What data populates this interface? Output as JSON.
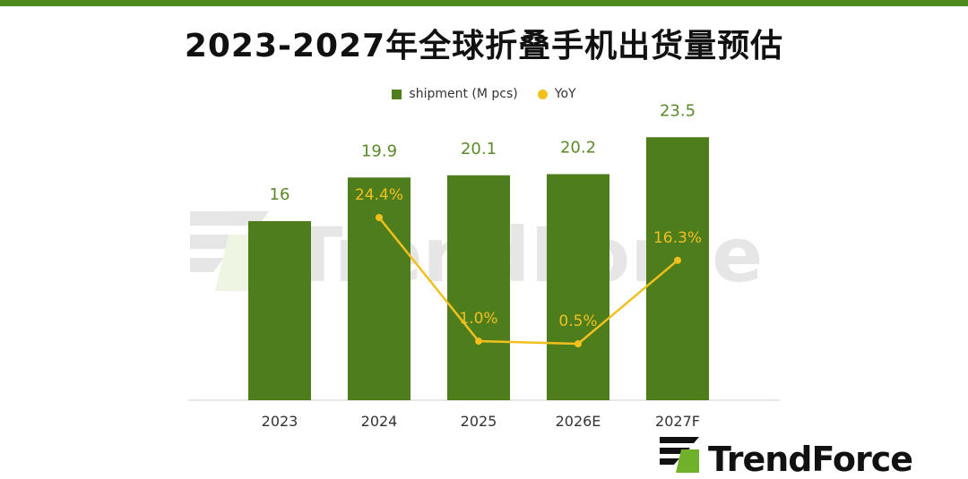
{
  "page": {
    "title": "2023-2027年全球折叠手机出货量预估",
    "watermark_text": "TrendForce",
    "logo_text": "TrendForce"
  },
  "legend": {
    "bar_label": "shipment (M pcs)",
    "line_label": "YoY"
  },
  "chart_data": {
    "type": "bar",
    "categories": [
      "2023",
      "2024",
      "2025",
      "2026E",
      "2027F"
    ],
    "series": [
      {
        "name": "shipment (M pcs)",
        "type": "bar",
        "values": [
          16,
          19.9,
          20.1,
          20.2,
          23.5
        ],
        "labels": [
          "16",
          "19.9",
          "20.1",
          "20.2",
          "23.5"
        ],
        "color": "#4e7d1c"
      },
      {
        "name": "YoY",
        "type": "line",
        "values": [
          null,
          24.4,
          1.0,
          0.5,
          16.3
        ],
        "labels": [
          "",
          "24.4%",
          "1.0%",
          "0.5%",
          "16.3%"
        ],
        "color": "#f2c01e"
      }
    ],
    "ylim": [
      0,
      25
    ],
    "y2lim": [
      -40,
      50
    ],
    "grid": false,
    "legend_position": "top-center",
    "colors": {
      "bar": "#4e7d1c",
      "line": "#f2c01e",
      "bar_label": "#5a8a2a",
      "line_label": "#f2c01e",
      "accent": "#4e8b1f"
    }
  }
}
